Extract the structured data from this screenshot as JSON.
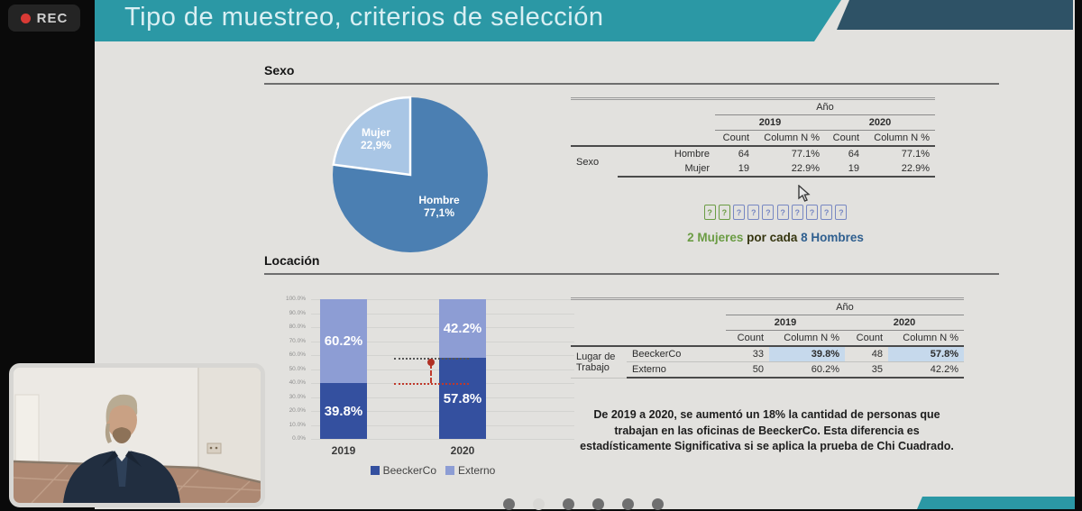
{
  "rec": {
    "label": "REC"
  },
  "slide": {
    "title": "Tipo de muestreo, criterios de selección",
    "section_sexo": "Sexo",
    "section_locacion": "Locación"
  },
  "sex_table": {
    "year_header": "Año",
    "years": [
      "2019",
      "2020"
    ],
    "col_headers": [
      "Count",
      "Column N %"
    ],
    "row_group": "Sexo",
    "rows": [
      {
        "label": "Hombre",
        "cells": [
          "64",
          "77.1%",
          "64",
          "77.1%"
        ]
      },
      {
        "label": "Mujer",
        "cells": [
          "19",
          "22.9%",
          "19",
          "22.9%"
        ]
      }
    ]
  },
  "ratio": {
    "women_icons": 2,
    "men_icons": 8,
    "women_text": "2 Mujeres",
    "middle_text": " por cada ",
    "men_text": "8 Hombres"
  },
  "location_table": {
    "year_header": "Año",
    "years": [
      "2019",
      "2020"
    ],
    "col_headers": [
      "Count",
      "Column N %"
    ],
    "row_group": "Lugar de\nTrabajo",
    "rows": [
      {
        "label": "BeeckerCo",
        "cells": [
          "33",
          "39.8%",
          "48",
          "57.8%"
        ],
        "highlight": [
          1,
          3
        ]
      },
      {
        "label": "Externo",
        "cells": [
          "50",
          "60.2%",
          "35",
          "42.2%"
        ],
        "highlight": []
      }
    ]
  },
  "caption_lines": [
    "De 2019 a 2020, se aumentó un 18% la cantidad de personas que",
    "trabajan en las oficinas de BeeckerCo. Esta diferencia es",
    "estadísticamente Significativa si se aplica la prueba de Chi Cuadrado."
  ],
  "footer": {
    "dots": 6,
    "active_dot": 1
  },
  "chart_data": [
    {
      "type": "pie",
      "section": "Sexo",
      "labels": [
        "Hombre",
        "Mujer"
      ],
      "values": [
        77.1,
        22.9
      ],
      "pct_display": [
        "77,1%",
        "22,9%"
      ],
      "colors": [
        "#4b7fb2",
        "#a9c6e5"
      ],
      "start": "top",
      "minor_slice_direction": "counterclockwise",
      "legend_position": "none"
    },
    {
      "type": "bar",
      "stacked": true,
      "section": "Locación",
      "categories": [
        "2019",
        "2020"
      ],
      "series": [
        {
          "name": "BeeckerCo",
          "values": [
            39.8,
            57.8
          ],
          "color": "#34509f"
        },
        {
          "name": "Externo",
          "values": [
            60.2,
            42.2
          ],
          "color": "#8d9dd4"
        }
      ],
      "ylim": [
        0,
        100
      ],
      "ytick_step": 10,
      "grid": true,
      "legend_position": "bottom",
      "annotation": "aumento de 39.8% a 57.8% en BeeckerCo"
    }
  ]
}
